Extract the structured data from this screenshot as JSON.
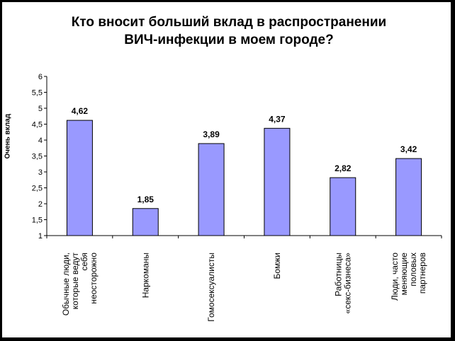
{
  "chart_data": {
    "type": "bar",
    "title_lines": [
      "Кто вносит больший вклад в распространении",
      "ВИЧ-инфекции в моем городе?"
    ],
    "ylabel": "Очень вклад",
    "xlabel": "",
    "categories": [
      [
        "Обычные люди,",
        "которые ведут",
        "себя",
        "неосторожно"
      ],
      [
        "Наркоманы"
      ],
      [
        "Гомосексуалисты"
      ],
      [
        "Бомжи"
      ],
      [
        "Работницы",
        "«секс-бизнеса»"
      ],
      [
        "Люди, часто",
        "меняющие",
        "половых",
        "партнеров"
      ]
    ],
    "values": [
      4.62,
      1.85,
      3.89,
      4.37,
      2.82,
      3.42
    ],
    "data_labels": [
      "4,62",
      "1,85",
      "3,89",
      "4,37",
      "2,82",
      "3,42"
    ],
    "ylim": [
      1,
      6
    ],
    "yticks": [
      1,
      1.5,
      2,
      2.5,
      3,
      3.5,
      4,
      4.5,
      5,
      5.5,
      6
    ],
    "ytick_labels": [
      "1",
      "1,5",
      "2",
      "2,5",
      "3",
      "3,5",
      "4",
      "4,5",
      "5",
      "5,5",
      "6"
    ],
    "grid": false,
    "legend": "none",
    "colors": {
      "bar_fill": "#9999ff",
      "bar_stroke": "#000000",
      "axis": "#000000",
      "background": "#ffffff",
      "border": "#000000"
    }
  }
}
